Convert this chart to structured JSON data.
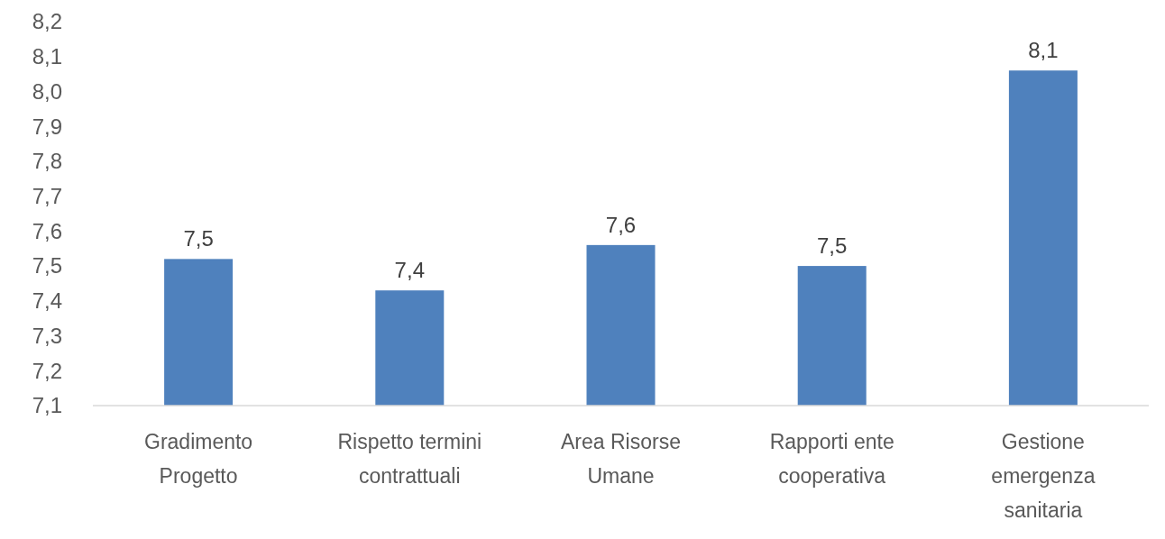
{
  "chart_data": {
    "type": "bar",
    "categories": [
      "Gradimento Progetto",
      "Rispetto termini contrattuali",
      "Area Risorse Umane",
      "Rapporti ente cooperativa",
      "Gestione emergenza sanitaria"
    ],
    "values": [
      7.52,
      7.43,
      7.56,
      7.5,
      8.06
    ],
    "value_labels": [
      "7,5",
      "7,4",
      "7,6",
      "7,5",
      "8,1"
    ],
    "color": "#4f81bd",
    "ylim": [
      7.1,
      8.2
    ],
    "yticks": [
      {
        "value": 7.1,
        "label": "7,1"
      },
      {
        "value": 7.2,
        "label": "7,2"
      },
      {
        "value": 7.3,
        "label": "7,3"
      },
      {
        "value": 7.4,
        "label": "7,4"
      },
      {
        "value": 7.5,
        "label": "7,5"
      },
      {
        "value": 7.6,
        "label": "7,6"
      },
      {
        "value": 7.7,
        "label": "7,7"
      },
      {
        "value": 7.8,
        "label": "7,8"
      },
      {
        "value": 7.9,
        "label": "7,9"
      },
      {
        "value": 8.0,
        "label": "8,0"
      },
      {
        "value": 8.1,
        "label": "8,1"
      },
      {
        "value": 8.2,
        "label": "8,2"
      }
    ],
    "grid": false
  }
}
